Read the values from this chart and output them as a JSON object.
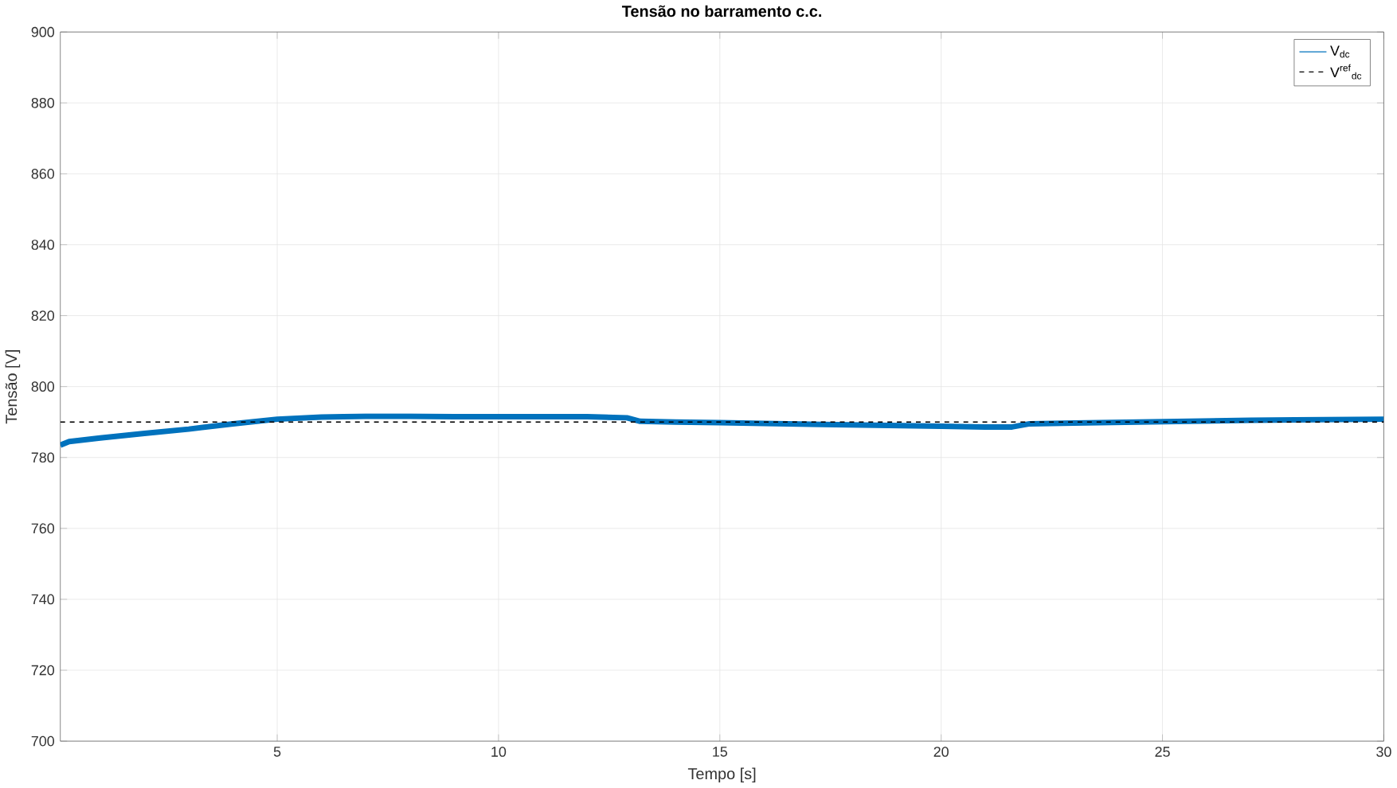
{
  "chart_data": {
    "type": "line",
    "title": "Tensão no barramento c.c.",
    "xlabel": "Tempo [s]",
    "ylabel": "Tensão [V]",
    "xlim": [
      0.1,
      30
    ],
    "ylim": [
      700,
      900
    ],
    "xticks": [
      5,
      10,
      15,
      20,
      25,
      30
    ],
    "yticks": [
      700,
      720,
      740,
      760,
      780,
      800,
      820,
      840,
      860,
      880,
      900
    ],
    "grid": true,
    "legend": "top right",
    "series": [
      {
        "name": "V$_{dc}$",
        "color": "#0072bd",
        "line_style": "solid",
        "x": [
          0.1,
          0.3,
          1,
          2,
          3,
          4,
          5,
          6,
          7,
          8,
          9,
          10,
          11,
          12,
          12.9,
          13.2,
          14,
          15,
          16,
          17,
          18,
          19,
          20,
          21,
          21.6,
          22,
          23,
          24,
          25,
          26,
          27,
          28,
          29,
          30
        ],
        "values": [
          783.5,
          784.5,
          785.5,
          786.8,
          788,
          789.5,
          790.8,
          791.4,
          791.6,
          791.6,
          791.5,
          791.5,
          791.5,
          791.5,
          791.2,
          790.2,
          790,
          789.8,
          789.6,
          789.4,
          789.2,
          789,
          788.8,
          788.6,
          788.6,
          789.5,
          789.7,
          789.9,
          790.1,
          790.3,
          790.5,
          790.6,
          790.7,
          790.8
        ]
      },
      {
        "name": "V$^{ref}$$_{dc}$",
        "color": "#000000",
        "line_style": "dashed",
        "x": [
          0.1,
          30
        ],
        "values": [
          790,
          790
        ]
      }
    ]
  }
}
